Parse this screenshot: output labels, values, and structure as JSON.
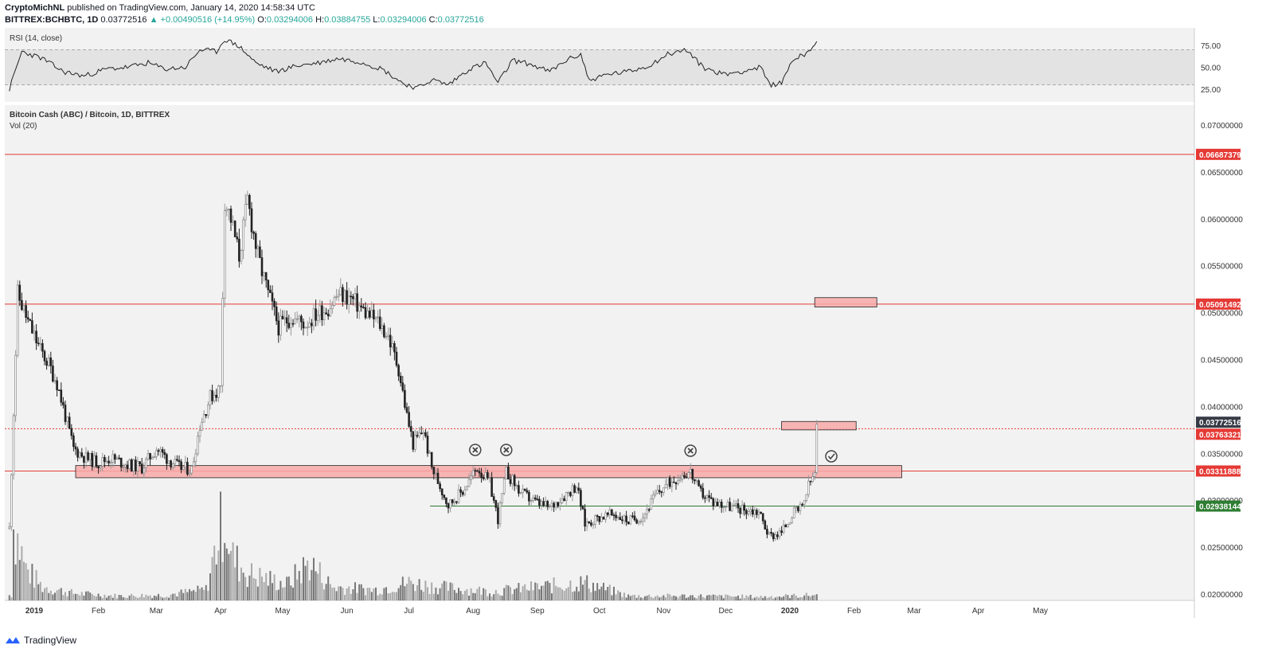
{
  "header": {
    "author": "CryptoMichNL",
    "published": "published on TradingView.com, January 14, 2020 14:58:34 UTC",
    "symbol": "BITTREX:BCHBTC, 1D",
    "last": "0.03772516",
    "change": "▲ +0.00490516 (+14.95%)",
    "o_label": "O:",
    "o": "0.03294006",
    "h_label": "H:",
    "h": "0.03884755",
    "l_label": "L:",
    "l": "0.03294006",
    "c_label": "C:",
    "c": "0.03772516"
  },
  "rsi_panel": {
    "label": "RSI (14, close)",
    "ticks": [
      "75.00",
      "50.00",
      "25.00"
    ]
  },
  "main_panel": {
    "title": "Bitcoin Cash (ABC) / Bitcoin, 1D, BITTREX",
    "vol_label": "Vol (20)"
  },
  "footer": {
    "brand": "TradingView"
  },
  "colors": {
    "up": "#26a69a",
    "red_line": "#e53935",
    "zone_fill": "#f7a9a8",
    "green_line": "#2e7d32",
    "candle": "#222222",
    "rsi_band": "#e3e3e3",
    "bg": "#f2f2f2"
  },
  "chart_data": {
    "type": "candlestick",
    "y_ticks": [
      "0.07000000",
      "0.06500000",
      "0.06000000",
      "0.05500000",
      "0.05000000",
      "0.04500000",
      "0.04000000",
      "0.03500000",
      "0.03000000",
      "0.02500000",
      "0.02000000"
    ],
    "y_range": [
      0.0195,
      0.0735
    ],
    "x_labels": [
      "2019",
      "Feb",
      "Mar",
      "Apr",
      "May",
      "Jun",
      "Jul",
      "Aug",
      "Sep",
      "Oct",
      "Nov",
      "Dec",
      "2020",
      "Feb",
      "Mar",
      "Apr",
      "May"
    ],
    "price_labels": [
      {
        "value": "0.06687379",
        "color": "#e53935"
      },
      {
        "value": "0.05091492",
        "color": "#e53935"
      },
      {
        "value": "0.03772516",
        "color": "#363a45"
      },
      {
        "value": "0.03763321",
        "color": "#e53935"
      },
      {
        "value": "0.03311888",
        "color": "#e53935"
      },
      {
        "value": "0.02938144",
        "color": "#2e7d32"
      }
    ],
    "horizontal_lines": [
      {
        "price": 0.06687,
        "color": "#e53935",
        "style": "solid"
      },
      {
        "price": 0.05091,
        "color": "#e53935",
        "style": "solid"
      },
      {
        "price": 0.03763,
        "color": "#e53935",
        "style": "dotted"
      },
      {
        "price": 0.03312,
        "color": "#e53935",
        "style": "solid"
      },
      {
        "price": 0.02938,
        "color": "#2e7d32",
        "style": "solid"
      }
    ],
    "zones": [
      {
        "from": "2019-01-21",
        "to": "2020-02-24",
        "low": 0.0324,
        "high": 0.0337
      },
      {
        "from": "2020-01-13",
        "to": "2020-02-12",
        "low": 0.0506,
        "high": 0.0516
      },
      {
        "from": "2019-12-28",
        "to": "2020-02-02",
        "low": 0.0375,
        "high": 0.0384
      }
    ],
    "markers": [
      {
        "type": "x-circle",
        "date": "2019-08-02"
      },
      {
        "type": "x-circle",
        "date": "2019-08-17"
      },
      {
        "type": "x-circle",
        "date": "2019-11-14"
      },
      {
        "type": "check-circle",
        "date": "2020-01-21"
      }
    ],
    "price_path": [
      [
        "2018-12-20",
        0.027
      ],
      [
        "2018-12-24",
        0.052
      ],
      [
        "2018-12-29",
        0.049
      ],
      [
        "2019-01-04",
        0.046
      ],
      [
        "2019-01-08",
        0.0445
      ],
      [
        "2019-01-12",
        0.0425
      ],
      [
        "2019-01-16",
        0.039
      ],
      [
        "2019-01-20",
        0.0355
      ],
      [
        "2019-01-26",
        0.0345
      ],
      [
        "2019-02-01",
        0.034
      ],
      [
        "2019-02-07",
        0.0345
      ],
      [
        "2019-02-15",
        0.0338
      ],
      [
        "2019-02-22",
        0.0335
      ],
      [
        "2019-03-01",
        0.0355
      ],
      [
        "2019-03-06",
        0.0345
      ],
      [
        "2019-03-12",
        0.0335
      ],
      [
        "2019-03-18",
        0.0333
      ],
      [
        "2019-03-22",
        0.038
      ],
      [
        "2019-03-27",
        0.041
      ],
      [
        "2019-04-01",
        0.042
      ],
      [
        "2019-04-03",
        0.062
      ],
      [
        "2019-04-06",
        0.06
      ],
      [
        "2019-04-10",
        0.056
      ],
      [
        "2019-04-14",
        0.062
      ],
      [
        "2019-04-19",
        0.056
      ],
      [
        "2019-04-24",
        0.052
      ],
      [
        "2019-04-29",
        0.0485
      ],
      [
        "2019-05-05",
        0.0495
      ],
      [
        "2019-05-12",
        0.0488
      ],
      [
        "2019-05-18",
        0.05
      ],
      [
        "2019-05-23",
        0.0505
      ],
      [
        "2019-05-28",
        0.052
      ],
      [
        "2019-06-03",
        0.0515
      ],
      [
        "2019-06-10",
        0.05
      ],
      [
        "2019-06-16",
        0.049
      ],
      [
        "2019-06-21",
        0.0475
      ],
      [
        "2019-06-26",
        0.044
      ],
      [
        "2019-06-30",
        0.039
      ],
      [
        "2019-07-03",
        0.036
      ],
      [
        "2019-07-08",
        0.0375
      ],
      [
        "2019-07-12",
        0.0335
      ],
      [
        "2019-07-16",
        0.0315
      ],
      [
        "2019-07-20",
        0.0295
      ],
      [
        "2019-07-27",
        0.031
      ],
      [
        "2019-08-03",
        0.0335
      ],
      [
        "2019-08-09",
        0.0318
      ],
      [
        "2019-08-13",
        0.028
      ],
      [
        "2019-08-17",
        0.033
      ],
      [
        "2019-08-24",
        0.0308
      ],
      [
        "2019-08-31",
        0.0298
      ],
      [
        "2019-09-07",
        0.0292
      ],
      [
        "2019-09-14",
        0.0305
      ],
      [
        "2019-09-20",
        0.0316
      ],
      [
        "2019-09-24",
        0.0275
      ],
      [
        "2019-10-01",
        0.0282
      ],
      [
        "2019-10-08",
        0.0285
      ],
      [
        "2019-10-15",
        0.0278
      ],
      [
        "2019-10-22",
        0.0283
      ],
      [
        "2019-10-28",
        0.0305
      ],
      [
        "2019-11-03",
        0.0318
      ],
      [
        "2019-11-10",
        0.0328
      ],
      [
        "2019-11-14",
        0.033
      ],
      [
        "2019-11-18",
        0.031
      ],
      [
        "2019-11-25",
        0.0298
      ],
      [
        "2019-12-02",
        0.0294
      ],
      [
        "2019-12-10",
        0.029
      ],
      [
        "2019-12-17",
        0.0288
      ],
      [
        "2019-12-22",
        0.0262
      ],
      [
        "2019-12-28",
        0.0266
      ],
      [
        "2020-01-02",
        0.0285
      ],
      [
        "2020-01-07",
        0.0292
      ],
      [
        "2020-01-10",
        0.0315
      ],
      [
        "2020-01-13",
        0.0329
      ],
      [
        "2020-01-14",
        0.0377
      ]
    ],
    "rsi_path": [
      [
        "2018-12-20",
        25
      ],
      [
        "2018-12-26",
        68
      ],
      [
        "2019-01-05",
        60
      ],
      [
        "2019-01-15",
        45
      ],
      [
        "2019-01-25",
        40
      ],
      [
        "2019-02-05",
        48
      ],
      [
        "2019-02-15",
        50
      ],
      [
        "2019-02-25",
        55
      ],
      [
        "2019-03-05",
        48
      ],
      [
        "2019-03-15",
        50
      ],
      [
        "2019-03-22",
        70
      ],
      [
        "2019-03-30",
        68
      ],
      [
        "2019-04-03",
        82
      ],
      [
        "2019-04-10",
        74
      ],
      [
        "2019-04-18",
        55
      ],
      [
        "2019-04-28",
        45
      ],
      [
        "2019-05-08",
        52
      ],
      [
        "2019-05-18",
        55
      ],
      [
        "2019-05-28",
        60
      ],
      [
        "2019-06-08",
        56
      ],
      [
        "2019-06-18",
        48
      ],
      [
        "2019-06-28",
        32
      ],
      [
        "2019-07-05",
        26
      ],
      [
        "2019-07-12",
        36
      ],
      [
        "2019-07-20",
        30
      ],
      [
        "2019-07-30",
        48
      ],
      [
        "2019-08-07",
        55
      ],
      [
        "2019-08-13",
        32
      ],
      [
        "2019-08-20",
        58
      ],
      [
        "2019-08-28",
        54
      ],
      [
        "2019-09-07",
        45
      ],
      [
        "2019-09-15",
        58
      ],
      [
        "2019-09-22",
        65
      ],
      [
        "2019-09-26",
        35
      ],
      [
        "2019-10-05",
        42
      ],
      [
        "2019-10-15",
        45
      ],
      [
        "2019-10-25",
        52
      ],
      [
        "2019-11-03",
        65
      ],
      [
        "2019-11-12",
        70
      ],
      [
        "2019-11-20",
        50
      ],
      [
        "2019-11-30",
        42
      ],
      [
        "2019-12-10",
        46
      ],
      [
        "2019-12-18",
        50
      ],
      [
        "2019-12-22",
        30
      ],
      [
        "2019-12-28",
        32
      ],
      [
        "2020-01-02",
        58
      ],
      [
        "2020-01-08",
        65
      ],
      [
        "2020-01-14",
        78
      ]
    ],
    "volume_path": [
      [
        "2018-12-22",
        0.85
      ],
      [
        "2018-12-28",
        0.35
      ],
      [
        "2019-01-05",
        0.15
      ],
      [
        "2019-01-20",
        0.08
      ],
      [
        "2019-02-10",
        0.05
      ],
      [
        "2019-03-05",
        0.06
      ],
      [
        "2019-03-25",
        0.12
      ],
      [
        "2019-04-03",
        1.0
      ],
      [
        "2019-04-06",
        0.5
      ],
      [
        "2019-04-14",
        0.3
      ],
      [
        "2019-05-03",
        0.18
      ],
      [
        "2019-05-14",
        0.42
      ],
      [
        "2019-05-25",
        0.15
      ],
      [
        "2019-06-15",
        0.12
      ],
      [
        "2019-07-01",
        0.2
      ],
      [
        "2019-07-15",
        0.15
      ],
      [
        "2019-08-10",
        0.1
      ],
      [
        "2019-09-24",
        0.2
      ],
      [
        "2019-10-15",
        0.05
      ],
      [
        "2019-11-15",
        0.05
      ],
      [
        "2019-12-20",
        0.04
      ],
      [
        "2020-01-14",
        0.06
      ]
    ]
  }
}
